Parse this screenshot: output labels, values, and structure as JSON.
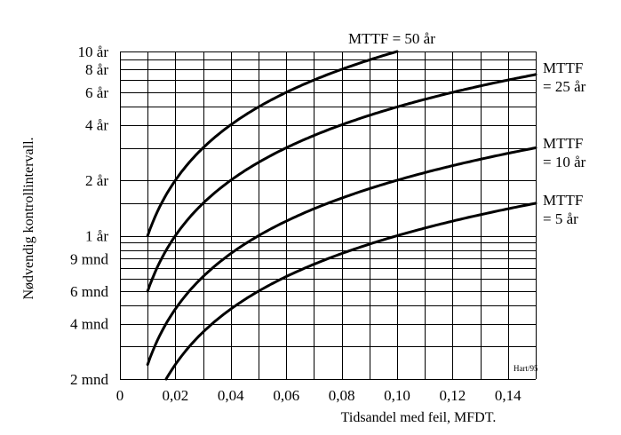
{
  "chart_data": {
    "type": "line",
    "x_scale": "linear",
    "y_scale": "log",
    "xlabel": "Tidsandel med feil, MFDT.",
    "ylabel": "Nødvendig kontrollintervall.",
    "credit": "Hart/95",
    "xlim": [
      0,
      0.15
    ],
    "ylim_months": [
      2,
      120
    ],
    "x_ticks": [
      {
        "value": 0,
        "label": "0"
      },
      {
        "value": 0.02,
        "label": "0,02"
      },
      {
        "value": 0.04,
        "label": "0,04"
      },
      {
        "value": 0.06,
        "label": "0,06"
      },
      {
        "value": 0.08,
        "label": "0,08"
      },
      {
        "value": 0.1,
        "label": "0,10"
      },
      {
        "value": 0.12,
        "label": "0,12"
      },
      {
        "value": 0.14,
        "label": "0,14"
      }
    ],
    "x_grid": [
      0.01,
      0.02,
      0.03,
      0.04,
      0.05,
      0.06,
      0.07,
      0.08,
      0.09,
      0.1,
      0.11,
      0.12,
      0.13,
      0.14,
      0.15
    ],
    "y_ticks_months": [
      {
        "value": 2,
        "label": "2 mnd"
      },
      {
        "value": 4,
        "label": "4 mnd"
      },
      {
        "value": 6,
        "label": "6 mnd"
      },
      {
        "value": 9,
        "label": "9 mnd"
      },
      {
        "value": 12,
        "label": "1 år"
      },
      {
        "value": 24,
        "label": "2 år"
      },
      {
        "value": 48,
        "label": "4 år"
      },
      {
        "value": 72,
        "label": "6 år"
      },
      {
        "value": 96,
        "label": "8 år"
      },
      {
        "value": 120,
        "label": "10 år"
      }
    ],
    "y_grid_months": [
      2,
      3,
      4,
      5,
      6,
      7,
      8,
      9,
      10,
      11,
      12,
      18,
      24,
      36,
      48,
      60,
      72,
      84,
      96,
      108,
      120
    ],
    "series": [
      {
        "name": "MTTF = 50 år",
        "label_lines": [
          "MTTF = 50 år"
        ],
        "mttf_months": 600
      },
      {
        "name": "MTTF = 25 år",
        "label_lines": [
          "MTTF",
          "= 25 år"
        ],
        "mttf_months": 300
      },
      {
        "name": "MTTF = 10 år",
        "label_lines": [
          "MTTF",
          "= 10 år"
        ],
        "mttf_months": 120
      },
      {
        "name": "MTTF = 5 år",
        "label_lines": [
          "MTTF",
          "= 5 år"
        ],
        "mttf_months": 60
      }
    ],
    "curve_relation": "intervall = 2 × MTTF × MFDT",
    "curve_x_start": 0.01
  }
}
